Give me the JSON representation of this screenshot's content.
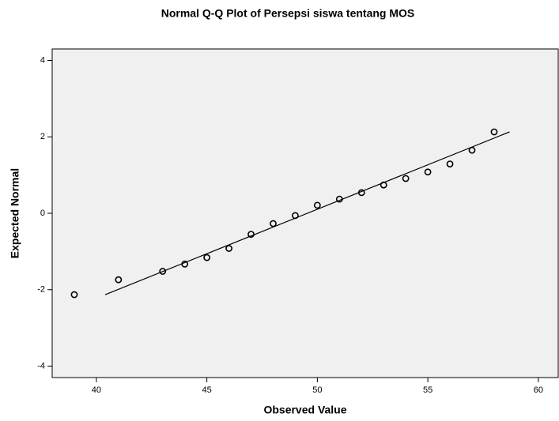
{
  "chart_data": {
    "type": "scatter",
    "title": "Normal Q-Q Plot of Persepsi siswa tentang MOS",
    "xlabel": "Observed Value",
    "ylabel": "Expected Normal",
    "x": [
      39,
      41,
      43,
      44,
      45,
      46,
      47,
      48,
      49,
      50,
      51,
      52,
      53,
      54,
      55,
      56,
      57,
      58
    ],
    "series": [
      {
        "color": "#000000",
        "values": [
          -2.13,
          -1.74,
          -1.52,
          -1.33,
          -1.16,
          -0.92,
          -0.55,
          -0.27,
          -0.06,
          0.21,
          0.37,
          0.54,
          0.74,
          0.91,
          1.08,
          1.29,
          1.65,
          2.13
        ]
      }
    ],
    "ref_line": {
      "x": [
        40.4,
        58.7
      ],
      "y": [
        -2.13,
        2.13
      ],
      "color": "#000000"
    },
    "xlim": [
      38,
      60.9
    ],
    "xticks": [
      40,
      45,
      50,
      55,
      60
    ],
    "ylim": [
      -4.3,
      4.3
    ],
    "yticks": [
      -4,
      -2,
      0,
      2,
      4
    ],
    "background": "#f0f0f0"
  }
}
